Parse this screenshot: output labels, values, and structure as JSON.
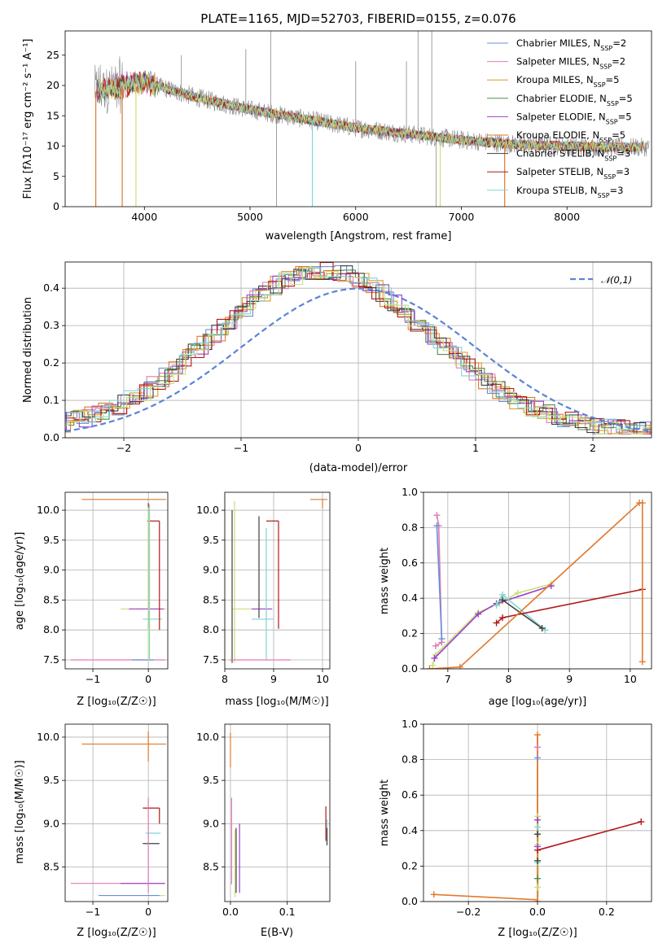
{
  "chart_data": [
    {
      "id": "spectrum",
      "type": "line",
      "title": "PLATE=1165, MJD=52703, FIBERID=0155, z=0.076",
      "xlabel": "wavelength [Angstrom, rest frame]",
      "ylabel": "Flux [fλ10⁻¹⁷ erg cm⁻² s⁻¹ A⁻¹]",
      "xlim": [
        3250,
        8800
      ],
      "ylim": [
        0,
        29
      ],
      "xticks": [
        4000,
        5000,
        6000,
        7000,
        8000
      ],
      "yticks": [
        0,
        5,
        10,
        15,
        20,
        25
      ],
      "grid": false,
      "legend_position": "upper right",
      "series": [
        {
          "name": "Chabrier MILES, N_SSP=2",
          "color": "#6b8fd6"
        },
        {
          "name": "Salpeter MILES, N_SSP=2",
          "color": "#e07bb5"
        },
        {
          "name": "Kroupa MILES, N_SSP=5",
          "color": "#d79a2e"
        },
        {
          "name": "Chabrier ELODIE, N_SSP=5",
          "color": "#4f8f4f"
        },
        {
          "name": "Salpeter ELODIE, N_SSP=5",
          "color": "#9b3fc9"
        },
        {
          "name": "Kroupa ELODIE, N_SSP=5",
          "color": "#e07a2e"
        },
        {
          "name": "Chabrier STELIB, N_SSP=3",
          "color": "#404040"
        },
        {
          "name": "Salpeter STELIB, N_SSP=3",
          "color": "#b01818"
        },
        {
          "name": "Kroupa STELIB, N_SSP=3",
          "color": "#7fd6d6"
        }
      ],
      "data_color": "#888888",
      "approx_continuum": {
        "x": [
          3550,
          3800,
          4000,
          4200,
          4500,
          5000,
          5500,
          6000,
          6500,
          7000,
          7500,
          8000,
          8500
        ],
        "y": [
          19,
          20,
          20.5,
          19.5,
          18,
          16,
          14.5,
          13,
          12,
          11,
          10.3,
          10,
          9.8
        ]
      }
    },
    {
      "id": "residuals",
      "type": "histogram",
      "xlabel": "(data-model)/error",
      "ylabel": "Normed distribution",
      "xlim": [
        -2.5,
        2.5
      ],
      "ylim": [
        0,
        0.47
      ],
      "xticks": [
        -2,
        -1,
        0,
        1,
        2
      ],
      "yticks": [
        0.0,
        0.1,
        0.2,
        0.3,
        0.4
      ],
      "grid": true,
      "legend": [
        {
          "label": "𝒩(0,1)",
          "color": "#5b84d6",
          "style": "dashed"
        }
      ],
      "reference_curve": {
        "type": "normal",
        "mean": 0,
        "sigma": 1
      },
      "approx_peak_center": -0.3
    },
    {
      "id": "age-vs-Z",
      "type": "errorbar",
      "xlabel": "Z [log₁₀(Z/Z☉)]",
      "ylabel": "age  [log₁₀(age/yr)]",
      "xlim": [
        -1.5,
        0.35
      ],
      "ylim": [
        7.35,
        10.3
      ],
      "xticks": [
        -1,
        0
      ],
      "yticks": [
        7.5,
        8.0,
        8.5,
        9.0,
        9.5,
        10.0
      ],
      "grid": true
    },
    {
      "id": "age-vs-mass",
      "type": "errorbar",
      "xlabel": "mass [log₁₀(M/M☉)]",
      "xlim": [
        8.0,
        10.15
      ],
      "ylim": [
        7.35,
        10.3
      ],
      "xticks": [
        8,
        9,
        10
      ],
      "yticks": [
        7.5,
        8.0,
        8.5,
        9.0,
        9.5,
        10.0
      ],
      "grid": true
    },
    {
      "id": "weight-vs-age",
      "type": "line",
      "xlabel": "age  [log₁₀(age/yr)]",
      "ylabel": "mass weight",
      "xlim": [
        6.6,
        10.35
      ],
      "ylim": [
        0,
        1.0
      ],
      "xticks": [
        7,
        8,
        9,
        10
      ],
      "yticks": [
        0.0,
        0.2,
        0.4,
        0.6,
        0.8,
        1.0
      ],
      "grid": true,
      "series": [
        {
          "color": "#e07bb5",
          "x": [
            6.82,
            6.85,
            6.9,
            6.8
          ],
          "y": [
            0.87,
            0.81,
            0.15,
            0.13
          ]
        },
        {
          "color": "#6b8fd6",
          "x": [
            6.82,
            6.9
          ],
          "y": [
            0.81,
            0.17
          ]
        },
        {
          "color": "#c9e07a",
          "x": [
            6.75,
            6.8,
            7.5,
            7.85,
            8.15,
            8.7
          ],
          "y": [
            0.02,
            0.08,
            0.32,
            0.37,
            0.43,
            0.48
          ]
        },
        {
          "color": "#9b3fc9",
          "x": [
            6.78,
            7.5,
            7.8,
            8.7
          ],
          "y": [
            0.06,
            0.31,
            0.37,
            0.47
          ]
        },
        {
          "color": "#7fd6d6",
          "x": [
            7.8,
            7.9,
            8.6
          ],
          "y": [
            0.36,
            0.42,
            0.22
          ]
        },
        {
          "color": "#404040",
          "x": [
            7.9,
            8.55
          ],
          "y": [
            0.39,
            0.23
          ]
        },
        {
          "color": "#b01818",
          "x": [
            7.8,
            7.9,
            10.2
          ],
          "y": [
            0.26,
            0.29,
            0.45
          ]
        },
        {
          "color": "#e07a2e",
          "x": [
            6.7,
            7.2,
            10.15,
            10.2,
            10.2
          ],
          "y": [
            0.0,
            0.01,
            0.94,
            0.94,
            0.04
          ]
        }
      ]
    },
    {
      "id": "mass-vs-Z",
      "type": "errorbar",
      "xlabel": "Z [log₁₀(Z/Z☉)]",
      "ylabel": "mass [log₁₀(M/M☉)]",
      "xlim": [
        -1.5,
        0.35
      ],
      "ylim": [
        8.1,
        10.15
      ],
      "xticks": [
        -1,
        0
      ],
      "yticks": [
        8.5,
        9.0,
        9.5,
        10.0
      ],
      "grid": true
    },
    {
      "id": "mass-vs-ebv",
      "type": "errorbar",
      "xlabel": "E(B-V)",
      "xlim": [
        -0.01,
        0.175
      ],
      "ylim": [
        8.1,
        10.15
      ],
      "xticks": [
        0.0,
        0.1
      ],
      "yticks": [
        8.5,
        9.0,
        9.5,
        10.0
      ],
      "grid": true
    },
    {
      "id": "weight-vs-Z",
      "type": "line",
      "xlabel": "Z [log₁₀(Z/Z☉)]",
      "ylabel": "mass weight",
      "xlim": [
        -0.33,
        0.33
      ],
      "ylim": [
        0,
        1.0
      ],
      "xticks": [
        -0.2,
        0.0,
        0.2
      ],
      "yticks": [
        0.0,
        0.2,
        0.4,
        0.6,
        0.8,
        1.0
      ],
      "grid": true,
      "series": [
        {
          "color": "#e07a2e",
          "x": [
            -0.3,
            0.0,
            0.0,
            0.0
          ],
          "y": [
            0.04,
            0.01,
            0.94,
            0.0
          ]
        },
        {
          "color": "#b01818",
          "x": [
            0.0,
            0.3
          ],
          "y": [
            0.29,
            0.45
          ]
        }
      ]
    }
  ]
}
